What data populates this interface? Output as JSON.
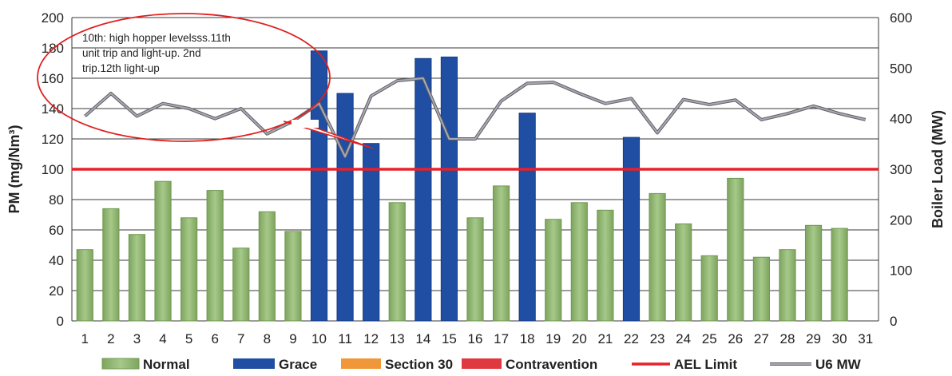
{
  "chart_data": {
    "type": "bar",
    "categories": [
      "1",
      "2",
      "3",
      "4",
      "5",
      "6",
      "7",
      "8",
      "9",
      "10",
      "11",
      "12",
      "13",
      "14",
      "15",
      "16",
      "17",
      "18",
      "19",
      "20",
      "21",
      "22",
      "23",
      "24",
      "25",
      "26",
      "27",
      "28",
      "29",
      "30",
      "31"
    ],
    "series": [
      {
        "name": "PM",
        "values": [
          47,
          74,
          57,
          92,
          68,
          86,
          48,
          72,
          59,
          178,
          150,
          117,
          78,
          173,
          174,
          68,
          89,
          137,
          67,
          78,
          73,
          121,
          84,
          64,
          43,
          94,
          42,
          47,
          63,
          61,
          null
        ],
        "status": [
          "Normal",
          "Normal",
          "Normal",
          "Normal",
          "Normal",
          "Normal",
          "Normal",
          "Normal",
          "Normal",
          "Grace",
          "Grace",
          "Grace",
          "Normal",
          "Grace",
          "Grace",
          "Normal",
          "Normal",
          "Grace",
          "Normal",
          "Normal",
          "Normal",
          "Grace",
          "Normal",
          "Normal",
          "Normal",
          "Normal",
          "Normal",
          "Normal",
          "Normal",
          "Normal",
          ""
        ]
      },
      {
        "name": "U6 MW",
        "axis": "right",
        "type": "line",
        "values": [
          405,
          450,
          405,
          430,
          420,
          400,
          420,
          370,
          395,
          430,
          325,
          445,
          475,
          480,
          360,
          360,
          435,
          470,
          472,
          450,
          430,
          440,
          372,
          438,
          428,
          437,
          398,
          410,
          425,
          410,
          398
        ]
      },
      {
        "name": "AEL Limit",
        "type": "line",
        "values": [
          100,
          100,
          100,
          100,
          100,
          100,
          100,
          100,
          100,
          100,
          100,
          100,
          100,
          100,
          100,
          100,
          100,
          100,
          100,
          100,
          100,
          100,
          100,
          100,
          100,
          100,
          100,
          100,
          100,
          100,
          100
        ]
      }
    ],
    "ylabel": "PM (mg/Nm³)",
    "ylabel_right": "Boiler Load (MW)",
    "ylim": [
      0,
      200
    ],
    "ylim_right": [
      0,
      600
    ],
    "yticks": [
      "0",
      "20",
      "40",
      "60",
      "80",
      "100",
      "120",
      "140",
      "160",
      "180",
      "200"
    ],
    "yticks_right": [
      "0",
      "100",
      "200",
      "300",
      "400",
      "500",
      "600"
    ],
    "grid": true,
    "legend": {
      "position": "bottom",
      "items": [
        {
          "label": "Normal",
          "color": "#8db26b"
        },
        {
          "label": "Grace",
          "color": "#1f4ea3"
        },
        {
          "label": "Section 30",
          "color": "#f0973a"
        },
        {
          "label": "Contravention",
          "color": "#e0383f"
        },
        {
          "label": "AEL Limit",
          "color": "#e8202a"
        },
        {
          "label": "U6 MW",
          "color": "#8e8e96"
        }
      ]
    },
    "annotation": {
      "lines": [
        "10th: high hopper levelsss.11th",
        "unit trip and light-up. 2nd",
        "trip.12th light-up"
      ],
      "points_to": "12"
    },
    "colors": {
      "normal": "#8db26b",
      "normal_edge": "#6f9a50",
      "grace": "#1f4ea3",
      "ael": "#e8202a",
      "mw": "#8e8e96",
      "callout": "#e02020"
    }
  }
}
